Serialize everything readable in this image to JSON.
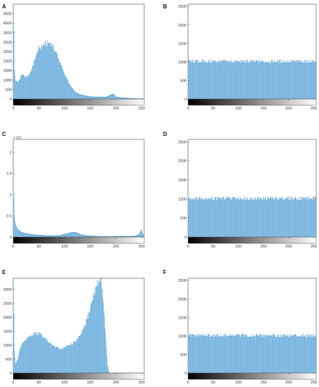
{
  "chart_data": [
    {
      "type": "bar",
      "panel_label": "A",
      "xlim": [
        0,
        255
      ],
      "ylim": [
        0,
        5000
      ],
      "xticks": [
        "0",
        "50",
        "100",
        "150",
        "200",
        "250"
      ],
      "yticks": [
        "0",
        "500",
        "1000",
        "1500",
        "2000",
        "2500",
        "3000",
        "3500",
        "4000",
        "4500"
      ],
      "ytick_values": [
        0,
        500,
        1000,
        1500,
        2000,
        2500,
        3000,
        3500,
        4000,
        4500
      ],
      "y_exponent": "",
      "colorbar": "grayscale",
      "keypoints": [
        [
          0,
          4600
        ],
        [
          1,
          3500
        ],
        [
          2,
          1500
        ],
        [
          4,
          950
        ],
        [
          8,
          900
        ],
        [
          12,
          1000
        ],
        [
          16,
          1300
        ],
        [
          20,
          1200
        ],
        [
          25,
          1150
        ],
        [
          30,
          1250
        ],
        [
          35,
          1500
        ],
        [
          40,
          1900
        ],
        [
          45,
          2350
        ],
        [
          50,
          2650
        ],
        [
          55,
          2750
        ],
        [
          60,
          2850
        ],
        [
          65,
          2900
        ],
        [
          70,
          2950
        ],
        [
          72,
          2950
        ],
        [
          76,
          2850
        ],
        [
          80,
          2600
        ],
        [
          85,
          2350
        ],
        [
          90,
          2000
        ],
        [
          95,
          1650
        ],
        [
          100,
          1300
        ],
        [
          105,
          1050
        ],
        [
          110,
          750
        ],
        [
          115,
          550
        ],
        [
          120,
          400
        ],
        [
          125,
          300
        ],
        [
          130,
          250
        ],
        [
          140,
          180
        ],
        [
          150,
          130
        ],
        [
          160,
          120
        ],
        [
          170,
          110
        ],
        [
          180,
          110
        ],
        [
          185,
          150
        ],
        [
          190,
          220
        ],
        [
          193,
          260
        ],
        [
          197,
          220
        ],
        [
          200,
          120
        ],
        [
          210,
          80
        ],
        [
          220,
          60
        ],
        [
          230,
          40
        ],
        [
          240,
          30
        ],
        [
          250,
          25
        ],
        [
          255,
          20
        ]
      ]
    },
    {
      "type": "bar",
      "panel_label": "B",
      "xlim": [
        0,
        255
      ],
      "ylim": [
        0,
        2560
      ],
      "xticks": [
        "0",
        "50",
        "100",
        "150",
        "200",
        "250"
      ],
      "yticks": [
        "0",
        "500",
        "1000",
        "1500",
        "2000",
        "2500"
      ],
      "ytick_values": [
        0,
        500,
        1000,
        1500,
        2000,
        2500
      ],
      "y_exponent": "",
      "colorbar": "grayscale",
      "keypoints": [
        [
          0,
          1010
        ],
        [
          255,
          1010
        ]
      ]
    },
    {
      "type": "bar",
      "panel_label": "C",
      "xlim": [
        0,
        255
      ],
      "ylim": [
        0,
        23000
      ],
      "xticks": [
        "0",
        "50",
        "100",
        "150",
        "200",
        "250"
      ],
      "yticks": [
        "0",
        "0.5",
        "1",
        "1.5",
        "2"
      ],
      "ytick_values": [
        0,
        5000,
        10000,
        15000,
        20000
      ],
      "y_exponent": "× 10⁴",
      "colorbar": "grayscale",
      "keypoints": [
        [
          0,
          20000
        ],
        [
          1,
          9000
        ],
        [
          2,
          4500
        ],
        [
          4,
          3000
        ],
        [
          8,
          2000
        ],
        [
          12,
          1500
        ],
        [
          16,
          1200
        ],
        [
          20,
          1000
        ],
        [
          30,
          800
        ],
        [
          40,
          600
        ],
        [
          50,
          500
        ],
        [
          60,
          400
        ],
        [
          70,
          350
        ],
        [
          80,
          350
        ],
        [
          90,
          400
        ],
        [
          100,
          700
        ],
        [
          110,
          1000
        ],
        [
          118,
          1200
        ],
        [
          125,
          1000
        ],
        [
          130,
          700
        ],
        [
          140,
          400
        ],
        [
          150,
          300
        ],
        [
          160,
          250
        ],
        [
          170,
          200
        ],
        [
          180,
          200
        ],
        [
          190,
          200
        ],
        [
          200,
          200
        ],
        [
          210,
          250
        ],
        [
          220,
          200
        ],
        [
          230,
          250
        ],
        [
          240,
          300
        ],
        [
          246,
          800
        ],
        [
          250,
          1800
        ],
        [
          253,
          900
        ],
        [
          255,
          300
        ]
      ]
    },
    {
      "type": "bar",
      "panel_label": "D",
      "xlim": [
        0,
        255
      ],
      "ylim": [
        0,
        2560
      ],
      "xticks": [
        "0",
        "50",
        "100",
        "150",
        "200",
        "250"
      ],
      "yticks": [
        "0",
        "500",
        "1000",
        "1500",
        "2000",
        "2500"
      ],
      "ytick_values": [
        0,
        500,
        1000,
        1500,
        2000,
        2500
      ],
      "y_exponent": "",
      "colorbar": "grayscale",
      "keypoints": [
        [
          0,
          1010
        ],
        [
          255,
          1010
        ]
      ]
    },
    {
      "type": "bar",
      "panel_label": "E",
      "xlim": [
        0,
        255
      ],
      "ylim": [
        0,
        3400
      ],
      "xticks": [
        "0",
        "50",
        "100",
        "150",
        "200",
        "250"
      ],
      "yticks": [
        "0",
        "500",
        "1000",
        "1500",
        "2000",
        "2500",
        "3000"
      ],
      "ytick_values": [
        0,
        500,
        1000,
        1500,
        2000,
        2500,
        3000
      ],
      "y_exponent": "",
      "colorbar": "grayscale",
      "keypoints": [
        [
          0,
          3300
        ],
        [
          2,
          800
        ],
        [
          4,
          300
        ],
        [
          8,
          500
        ],
        [
          12,
          800
        ],
        [
          16,
          1000
        ],
        [
          20,
          1100
        ],
        [
          25,
          1200
        ],
        [
          30,
          1300
        ],
        [
          35,
          1350
        ],
        [
          40,
          1400
        ],
        [
          45,
          1450
        ],
        [
          50,
          1400
        ],
        [
          55,
          1350
        ],
        [
          60,
          1300
        ],
        [
          65,
          1200
        ],
        [
          70,
          1100
        ],
        [
          75,
          1000
        ],
        [
          80,
          950
        ],
        [
          85,
          900
        ],
        [
          90,
          870
        ],
        [
          95,
          880
        ],
        [
          100,
          900
        ],
        [
          105,
          950
        ],
        [
          110,
          1000
        ],
        [
          115,
          1050
        ],
        [
          120,
          1100
        ],
        [
          125,
          1200
        ],
        [
          130,
          1300
        ],
        [
          135,
          1500
        ],
        [
          140,
          1700
        ],
        [
          145,
          2000
        ],
        [
          150,
          2300
        ],
        [
          155,
          2700
        ],
        [
          160,
          3000
        ],
        [
          165,
          3200
        ],
        [
          168,
          3350
        ],
        [
          170,
          3400
        ],
        [
          172,
          3300
        ],
        [
          175,
          2800
        ],
        [
          178,
          2000
        ],
        [
          180,
          1400
        ],
        [
          182,
          800
        ],
        [
          184,
          300
        ],
        [
          186,
          80
        ],
        [
          188,
          0
        ],
        [
          255,
          0
        ]
      ]
    },
    {
      "type": "bar",
      "panel_label": "F",
      "xlim": [
        0,
        255
      ],
      "ylim": [
        0,
        2560
      ],
      "xticks": [
        "0",
        "50",
        "100",
        "150",
        "200",
        "250"
      ],
      "yticks": [
        "0",
        "500",
        "1000",
        "1500",
        "2000",
        "2500"
      ],
      "ytick_values": [
        0,
        500,
        1000,
        1500,
        2000,
        2500
      ],
      "y_exponent": "",
      "colorbar": "grayscale",
      "keypoints": [
        [
          0,
          1010
        ],
        [
          255,
          1010
        ]
      ]
    }
  ],
  "colors": {
    "bar": "#5aa5d9",
    "bar_edge": "#2f7fc1",
    "axis": "#444444",
    "background": "#ffffff"
  }
}
